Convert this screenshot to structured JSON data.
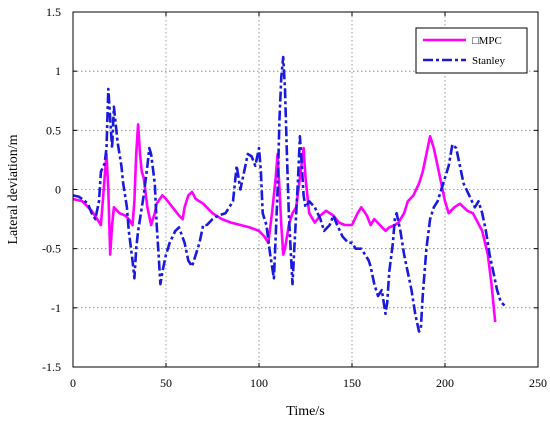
{
  "chart_data": {
    "type": "line",
    "title": "",
    "xlabel": "Time/s",
    "ylabel": "Lateral deviation/m",
    "xlim": [
      0,
      250
    ],
    "ylim": [
      -1.5,
      1.5
    ],
    "x_ticks": [
      0,
      50,
      100,
      150,
      200,
      250
    ],
    "y_ticks": [
      -1.5,
      -1,
      -0.5,
      0,
      0.5,
      1,
      1.5
    ],
    "x_tick_labels": [
      "0",
      "50",
      "100",
      "150",
      "200",
      "250"
    ],
    "y_tick_labels": [
      "-1.5",
      "-1",
      "-0.5",
      "0",
      "0.5",
      "1",
      "1.5"
    ],
    "grid": true,
    "legend_position": "top-right",
    "series": [
      {
        "name": "□MPC",
        "color": "#ff00ff",
        "line_style": "solid",
        "points": [
          [
            0,
            -0.08
          ],
          [
            5,
            -0.1
          ],
          [
            10,
            -0.18
          ],
          [
            13,
            -0.25
          ],
          [
            15,
            -0.3
          ],
          [
            16,
            -0.1
          ],
          [
            17,
            0.1
          ],
          [
            18,
            0.3
          ],
          [
            19,
            0.0
          ],
          [
            20,
            -0.55
          ],
          [
            21,
            -0.3
          ],
          [
            22,
            -0.15
          ],
          [
            25,
            -0.2
          ],
          [
            28,
            -0.22
          ],
          [
            30,
            -0.25
          ],
          [
            32,
            -0.3
          ],
          [
            33,
            -0.1
          ],
          [
            34,
            0.3
          ],
          [
            35,
            0.55
          ],
          [
            36,
            0.3
          ],
          [
            37,
            0.15
          ],
          [
            38,
            0.1
          ],
          [
            40,
            -0.15
          ],
          [
            42,
            -0.3
          ],
          [
            44,
            -0.2
          ],
          [
            45,
            -0.12
          ],
          [
            48,
            -0.05
          ],
          [
            50,
            -0.08
          ],
          [
            52,
            -0.12
          ],
          [
            55,
            -0.18
          ],
          [
            57,
            -0.22
          ],
          [
            59,
            -0.25
          ],
          [
            60,
            -0.15
          ],
          [
            62,
            -0.05
          ],
          [
            64,
            -0.02
          ],
          [
            66,
            -0.08
          ],
          [
            70,
            -0.12
          ],
          [
            75,
            -0.2
          ],
          [
            80,
            -0.25
          ],
          [
            85,
            -0.28
          ],
          [
            90,
            -0.3
          ],
          [
            95,
            -0.32
          ],
          [
            100,
            -0.35
          ],
          [
            103,
            -0.4
          ],
          [
            105,
            -0.45
          ],
          [
            107,
            -0.2
          ],
          [
            109,
            0.1
          ],
          [
            110,
            0.3
          ],
          [
            111,
            0.0
          ],
          [
            112,
            -0.3
          ],
          [
            113,
            -0.55
          ],
          [
            114,
            -0.5
          ],
          [
            116,
            -0.3
          ],
          [
            118,
            -0.2
          ],
          [
            120,
            -0.15
          ],
          [
            122,
            0.1
          ],
          [
            124,
            0.35
          ],
          [
            125,
            0.1
          ],
          [
            127,
            -0.2
          ],
          [
            130,
            -0.28
          ],
          [
            133,
            -0.22
          ],
          [
            136,
            -0.18
          ],
          [
            140,
            -0.22
          ],
          [
            143,
            -0.28
          ],
          [
            146,
            -0.3
          ],
          [
            150,
            -0.3
          ],
          [
            153,
            -0.2
          ],
          [
            155,
            -0.15
          ],
          [
            158,
            -0.22
          ],
          [
            160,
            -0.3
          ],
          [
            162,
            -0.25
          ],
          [
            165,
            -0.3
          ],
          [
            168,
            -0.35
          ],
          [
            170,
            -0.32
          ],
          [
            173,
            -0.3
          ],
          [
            175,
            -0.28
          ],
          [
            178,
            -0.2
          ],
          [
            180,
            -0.1
          ],
          [
            183,
            -0.05
          ],
          [
            186,
            0.05
          ],
          [
            188,
            0.15
          ],
          [
            190,
            0.3
          ],
          [
            192,
            0.45
          ],
          [
            194,
            0.35
          ],
          [
            196,
            0.2
          ],
          [
            198,
            0.05
          ],
          [
            200,
            -0.1
          ],
          [
            202,
            -0.2
          ],
          [
            205,
            -0.15
          ],
          [
            208,
            -0.12
          ],
          [
            212,
            -0.18
          ],
          [
            215,
            -0.2
          ],
          [
            220,
            -0.35
          ],
          [
            223,
            -0.55
          ],
          [
            225,
            -0.8
          ],
          [
            227,
            -1.12
          ]
        ]
      },
      {
        "name": "Stanley",
        "color": "#1a1adc",
        "line_style": "dashdot",
        "points": [
          [
            0,
            -0.05
          ],
          [
            3,
            -0.06
          ],
          [
            5,
            -0.08
          ],
          [
            8,
            -0.12
          ],
          [
            10,
            -0.2
          ],
          [
            12,
            -0.25
          ],
          [
            14,
            -0.1
          ],
          [
            15,
            0.15
          ],
          [
            17,
            0.22
          ],
          [
            18,
            0.35
          ],
          [
            19,
            0.85
          ],
          [
            20,
            0.6
          ],
          [
            21,
            0.35
          ],
          [
            22,
            0.7
          ],
          [
            24,
            0.4
          ],
          [
            26,
            0.2
          ],
          [
            27,
            0.05
          ],
          [
            28,
            -0.05
          ],
          [
            29,
            -0.15
          ],
          [
            30,
            -0.35
          ],
          [
            32,
            -0.6
          ],
          [
            33,
            -0.75
          ],
          [
            34,
            -0.5
          ],
          [
            35,
            -0.35
          ],
          [
            36,
            -0.25
          ],
          [
            38,
            -0.05
          ],
          [
            40,
            0.2
          ],
          [
            41,
            0.35
          ],
          [
            42,
            0.3
          ],
          [
            44,
            0.05
          ],
          [
            45,
            -0.3
          ],
          [
            46,
            -0.55
          ],
          [
            47,
            -0.8
          ],
          [
            48,
            -0.7
          ],
          [
            50,
            -0.55
          ],
          [
            52,
            -0.45
          ],
          [
            55,
            -0.35
          ],
          [
            57,
            -0.32
          ],
          [
            60,
            -0.45
          ],
          [
            62,
            -0.6
          ],
          [
            64,
            -0.65
          ],
          [
            66,
            -0.55
          ],
          [
            68,
            -0.45
          ],
          [
            70,
            -0.3
          ],
          [
            72,
            -0.3
          ],
          [
            75,
            -0.25
          ],
          [
            78,
            -0.22
          ],
          [
            82,
            -0.2
          ],
          [
            86,
            -0.1
          ],
          [
            88,
            0.2
          ],
          [
            90,
            0.0
          ],
          [
            92,
            0.15
          ],
          [
            94,
            0.3
          ],
          [
            96,
            0.28
          ],
          [
            98,
            0.2
          ],
          [
            100,
            0.35
          ],
          [
            101,
            0.15
          ],
          [
            102,
            -0.2
          ],
          [
            104,
            -0.3
          ],
          [
            106,
            -0.55
          ],
          [
            108,
            -0.75
          ],
          [
            109,
            -0.4
          ],
          [
            110,
            0.0
          ],
          [
            111,
            0.6
          ],
          [
            112,
            0.95
          ],
          [
            113,
            1.12
          ],
          [
            114,
            0.85
          ],
          [
            115,
            0.3
          ],
          [
            116,
            -0.2
          ],
          [
            117,
            -0.5
          ],
          [
            118,
            -0.8
          ],
          [
            119,
            -0.5
          ],
          [
            120,
            -0.2
          ],
          [
            121,
            0.1
          ],
          [
            122,
            0.45
          ],
          [
            123,
            0.2
          ],
          [
            124,
            -0.05
          ],
          [
            125,
            -0.15
          ],
          [
            127,
            -0.1
          ],
          [
            130,
            -0.15
          ],
          [
            133,
            -0.25
          ],
          [
            135,
            -0.35
          ],
          [
            138,
            -0.3
          ],
          [
            140,
            -0.22
          ],
          [
            142,
            -0.3
          ],
          [
            145,
            -0.4
          ],
          [
            148,
            -0.45
          ],
          [
            150,
            -0.45
          ],
          [
            152,
            -0.5
          ],
          [
            155,
            -0.5
          ],
          [
            157,
            -0.55
          ],
          [
            159,
            -0.6
          ],
          [
            160,
            -0.65
          ],
          [
            162,
            -0.8
          ],
          [
            164,
            -0.9
          ],
          [
            166,
            -0.85
          ],
          [
            168,
            -1.05
          ],
          [
            169,
            -0.95
          ],
          [
            170,
            -0.7
          ],
          [
            172,
            -0.45
          ],
          [
            173,
            -0.25
          ],
          [
            174,
            -0.2
          ],
          [
            176,
            -0.35
          ],
          [
            178,
            -0.55
          ],
          [
            180,
            -0.7
          ],
          [
            182,
            -0.85
          ],
          [
            184,
            -1.05
          ],
          [
            186,
            -1.2
          ],
          [
            187,
            -1.18
          ],
          [
            188,
            -0.9
          ],
          [
            190,
            -0.5
          ],
          [
            192,
            -0.25
          ],
          [
            194,
            -0.15
          ],
          [
            196,
            -0.1
          ],
          [
            198,
            0.0
          ],
          [
            200,
            0.1
          ],
          [
            202,
            0.2
          ],
          [
            204,
            0.38
          ],
          [
            206,
            0.35
          ],
          [
            208,
            0.2
          ],
          [
            210,
            0.05
          ],
          [
            213,
            -0.05
          ],
          [
            216,
            -0.15
          ],
          [
            218,
            -0.1
          ],
          [
            220,
            -0.2
          ],
          [
            222,
            -0.35
          ],
          [
            224,
            -0.55
          ],
          [
            226,
            -0.7
          ],
          [
            228,
            -0.85
          ],
          [
            230,
            -0.95
          ],
          [
            232,
            -0.98
          ]
        ]
      }
    ]
  }
}
